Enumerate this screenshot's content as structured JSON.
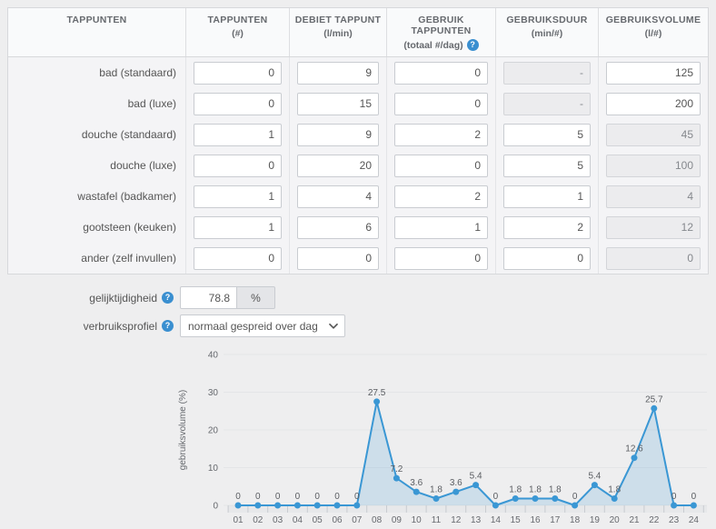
{
  "icons": {
    "info_glyph": "?"
  },
  "table": {
    "headers": [
      {
        "line1": "TAPPUNTEN",
        "line2": ""
      },
      {
        "line1": "TAPPUNTEN",
        "line2": "(#)"
      },
      {
        "line1": "DEBIET TAPPUNT",
        "line2": "(l/min)"
      },
      {
        "line1": "GEBRUIK TAPPUNTEN",
        "line2": "(totaal #/dag)",
        "info": true
      },
      {
        "line1": "GEBRUIKSDUUR",
        "line2": "(min/#)"
      },
      {
        "line1": "GEBRUIKSVOLUME",
        "line2": "(l/#)"
      }
    ],
    "rows": [
      {
        "label": "bad (standaard)",
        "aantal": "0",
        "debiet": "9",
        "gebruik": "0",
        "duur": "-",
        "duur_readonly": true,
        "volume": "125",
        "volume_readonly": false
      },
      {
        "label": "bad (luxe)",
        "aantal": "0",
        "debiet": "15",
        "gebruik": "0",
        "duur": "-",
        "duur_readonly": true,
        "volume": "200",
        "volume_readonly": false
      },
      {
        "label": "douche (standaard)",
        "aantal": "1",
        "debiet": "9",
        "gebruik": "2",
        "duur": "5",
        "duur_readonly": false,
        "volume": "45",
        "volume_readonly": true
      },
      {
        "label": "douche (luxe)",
        "aantal": "0",
        "debiet": "20",
        "gebruik": "0",
        "duur": "5",
        "duur_readonly": false,
        "volume": "100",
        "volume_readonly": true
      },
      {
        "label": "wastafel (badkamer)",
        "aantal": "1",
        "debiet": "4",
        "gebruik": "2",
        "duur": "1",
        "duur_readonly": false,
        "volume": "4",
        "volume_readonly": true
      },
      {
        "label": "gootsteen (keuken)",
        "aantal": "1",
        "debiet": "6",
        "gebruik": "1",
        "duur": "2",
        "duur_readonly": false,
        "volume": "12",
        "volume_readonly": true
      },
      {
        "label": "ander (zelf invullen)",
        "aantal": "0",
        "debiet": "0",
        "gebruik": "0",
        "duur": "0",
        "duur_readonly": false,
        "volume": "0",
        "volume_readonly": true
      }
    ]
  },
  "controls": {
    "gelijktijdigheid_label": "gelijktijdigheid",
    "gelijktijdigheid_value": "78.8",
    "gelijktijdigheid_unit": "%",
    "verbruiksprofiel_label": "verbruiksprofiel",
    "verbruiksprofiel_value": "normaal gespreid over dag"
  },
  "colors": {
    "accent_blue": "#3a97d4",
    "info_icon_blue": "#3a8fd0",
    "readonly_field_bg": "#ececee",
    "text_gray": "#555555"
  },
  "chart_data": {
    "type": "line",
    "title": "",
    "x": [
      "01",
      "02",
      "03",
      "04",
      "05",
      "06",
      "07",
      "08",
      "09",
      "10",
      "11",
      "12",
      "13",
      "14",
      "15",
      "16",
      "17",
      "18",
      "19",
      "20",
      "21",
      "22",
      "23",
      "24"
    ],
    "series": [
      {
        "name": "gebruiksvolume",
        "values": [
          0,
          0,
          0,
          0,
          0,
          0,
          0,
          27.5,
          7.2,
          3.6,
          1.8,
          3.6,
          5.4,
          0,
          1.8,
          1.8,
          1.8,
          0,
          5.4,
          1.8,
          12.6,
          25.7,
          0,
          0
        ]
      }
    ],
    "xlabel": "",
    "ylabel": "gebruiksvolume (%)",
    "ylim": [
      0,
      40
    ],
    "yticks": [
      0,
      10,
      20,
      30,
      40
    ],
    "grid": true,
    "legend": false,
    "data_labels": true,
    "line_color": "#3a97d4",
    "fill_color": "rgba(58,151,212,0.18)",
    "marker": "circle"
  }
}
